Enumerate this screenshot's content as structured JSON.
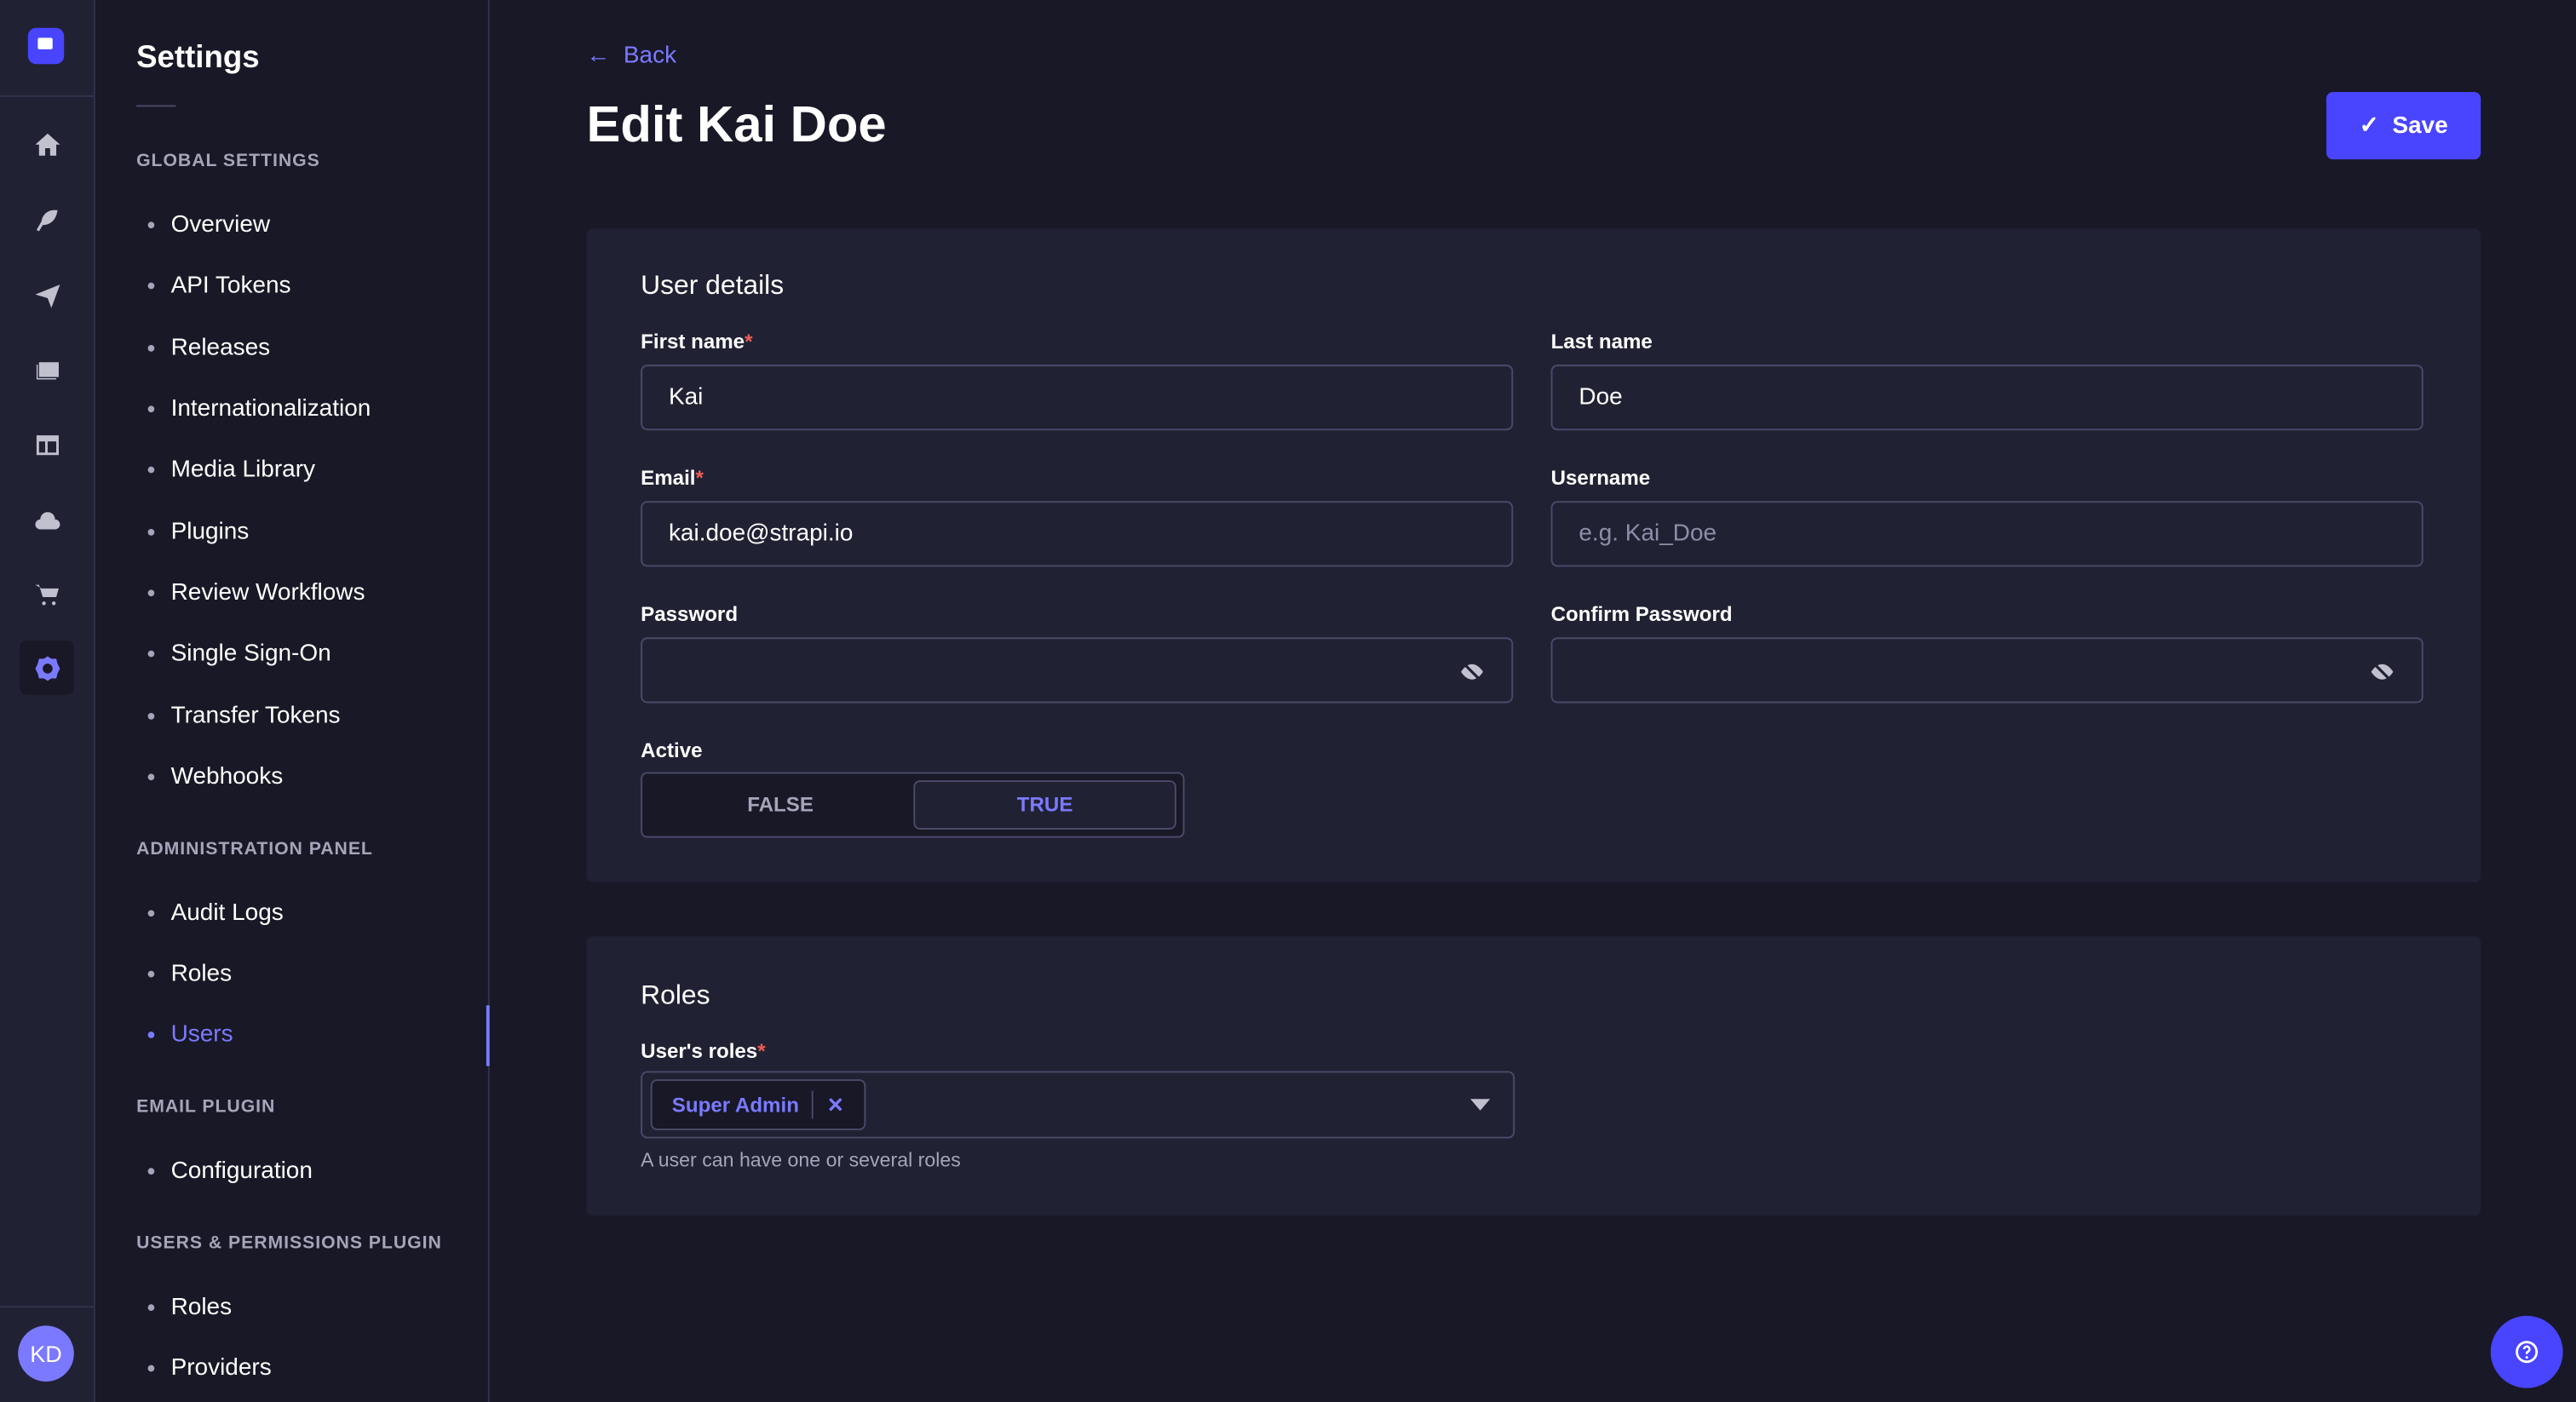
{
  "nav": {
    "icons": [
      "home-icon",
      "feather-icon",
      "paper-plane-icon",
      "images-icon",
      "layout-icon",
      "cloud-icon",
      "cart-icon",
      "gear-icon"
    ],
    "active": "gear-icon",
    "avatar": "KD"
  },
  "sidebar": {
    "title": "Settings",
    "sections": [
      {
        "label": "GLOBAL SETTINGS",
        "items": [
          "Overview",
          "API Tokens",
          "Releases",
          "Internationalization",
          "Media Library",
          "Plugins",
          "Review Workflows",
          "Single Sign-On",
          "Transfer Tokens",
          "Webhooks"
        ]
      },
      {
        "label": "ADMINISTRATION PANEL",
        "items": [
          "Audit Logs",
          "Roles",
          "Users"
        ]
      },
      {
        "label": "EMAIL PLUGIN",
        "items": [
          "Configuration"
        ]
      },
      {
        "label": "USERS & PERMISSIONS PLUGIN",
        "items": [
          "Roles",
          "Providers"
        ]
      }
    ],
    "active_item": "Users"
  },
  "header": {
    "back": "Back",
    "title": "Edit Kai Doe",
    "save": "Save"
  },
  "details": {
    "title": "User details",
    "first_name": {
      "label": "First name",
      "required": "*",
      "value": "Kai"
    },
    "last_name": {
      "label": "Last name",
      "value": "Doe"
    },
    "email": {
      "label": "Email",
      "required": "*",
      "value": "kai.doe@strapi.io"
    },
    "username": {
      "label": "Username",
      "placeholder": "e.g. Kai_Doe"
    },
    "password": {
      "label": "Password"
    },
    "confirm_password": {
      "label": "Confirm Password"
    },
    "active": {
      "label": "Active",
      "false": "FALSE",
      "true": "TRUE",
      "value": true
    }
  },
  "roles": {
    "title": "Roles",
    "label": "User's roles",
    "required": "*",
    "selected": [
      "Super Admin"
    ],
    "hint": "A user can have one or several roles"
  },
  "colors": {
    "primary": "#4945ff",
    "accent": "#7b79ff",
    "background": "#181826",
    "surface": "#212134"
  }
}
